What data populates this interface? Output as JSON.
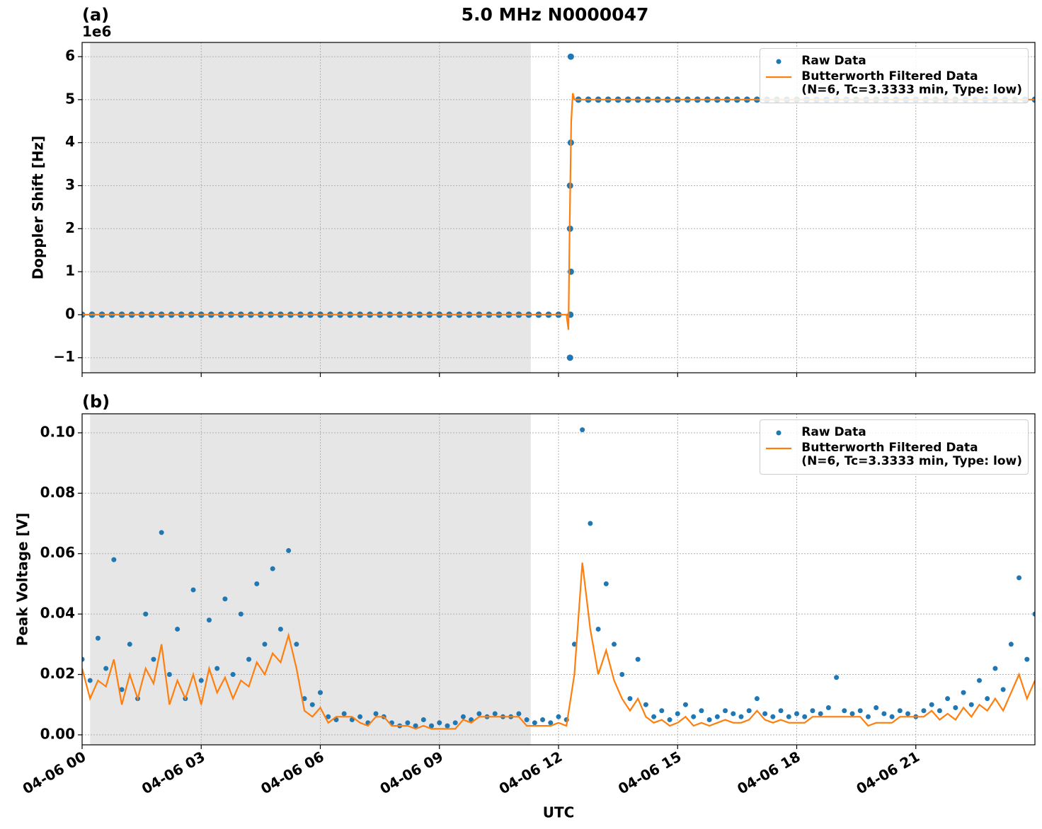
{
  "figure_title": "5.0 MHz N0000047",
  "chart_data": [
    {
      "type": "line",
      "title": "(a)",
      "ylabel": "Doppler Shift [Hz]",
      "y_offset_text": "1e6",
      "xlim": [
        0,
        24
      ],
      "xticks": [
        0,
        3,
        6,
        9,
        12,
        15,
        18,
        21
      ],
      "xtick_labels": false,
      "ylim": [
        -1350000,
        6330000
      ],
      "yticks": [
        {
          "value": -1000000,
          "label": "−1"
        },
        0,
        {
          "value": 1000000,
          "label": "1"
        },
        {
          "value": 2000000,
          "label": "2"
        },
        {
          "value": 3000000,
          "label": "3"
        },
        {
          "value": 4000000,
          "label": "4"
        },
        {
          "value": 5000000,
          "label": "5"
        },
        {
          "value": 6000000,
          "label": "6"
        }
      ],
      "grid": true,
      "legend": "upper right",
      "shaded_span": [
        0.2,
        11.3
      ],
      "shade_color": "#e6e6e6",
      "series": [
        {
          "name": "Raw Data",
          "mode": "markers",
          "color": "#1f77b4",
          "x": [
            0,
            0.25,
            0.5,
            0.75,
            1,
            1.25,
            1.5,
            1.75,
            2,
            2.25,
            2.5,
            2.75,
            3,
            3.25,
            3.5,
            3.75,
            4,
            4.25,
            4.5,
            4.75,
            5,
            5.25,
            5.5,
            5.75,
            6,
            6.25,
            6.5,
            6.75,
            7,
            7.25,
            7.5,
            7.75,
            8,
            8.25,
            8.5,
            8.75,
            9,
            9.25,
            9.5,
            9.75,
            10,
            10.25,
            10.5,
            10.75,
            11,
            11.25,
            11.5,
            11.75,
            12,
            12.29,
            12.3,
            12.31,
            12.29,
            12.29,
            12.31,
            12.31,
            12.5,
            12.75,
            13,
            13.25,
            13.5,
            13.75,
            14,
            14.25,
            14.5,
            14.75,
            15,
            15.25,
            15.5,
            15.75,
            16,
            16.25,
            16.5,
            16.75,
            17,
            17.25,
            17.5,
            17.75,
            18,
            18.25,
            18.5,
            18.75,
            19,
            19.25,
            19.5,
            19.75,
            20,
            20.25,
            20.5,
            20.75,
            21,
            21.25,
            21.5,
            21.75,
            22,
            22.25,
            22.5,
            22.75,
            23,
            23.25,
            23.5,
            23.75,
            24
          ],
          "values": [
            0,
            0,
            0,
            0,
            0,
            0,
            0,
            0,
            0,
            0,
            0,
            0,
            0,
            0,
            0,
            0,
            0,
            0,
            0,
            0,
            0,
            0,
            0,
            0,
            0,
            0,
            0,
            0,
            0,
            0,
            0,
            0,
            0,
            0,
            0,
            0,
            0,
            0,
            0,
            0,
            0,
            0,
            0,
            0,
            0,
            0,
            0,
            0,
            0,
            -1000000,
            0,
            1000000,
            2000000,
            3000000,
            4000000,
            6000000,
            5000000,
            5000000,
            5000000,
            5000000,
            5000000,
            5000000,
            5000000,
            5000000,
            5000000,
            5000000,
            5000000,
            5000000,
            5000000,
            5000000,
            5000000,
            5000000,
            5000000,
            5000000,
            5000000,
            5000000,
            5000000,
            5000000,
            5000000,
            5000000,
            5000000,
            5000000,
            5000000,
            5000000,
            5000000,
            5000000,
            5000000,
            5000000,
            5000000,
            5000000,
            5000000,
            5000000,
            5000000,
            5000000,
            5000000,
            5000000,
            5000000,
            5000000,
            5000000,
            5000000,
            5000000,
            5000000,
            5000000
          ]
        },
        {
          "name": "Butterworth Filtered Data\n(N=6, Tc=3.3333 min, Type: low)",
          "mode": "lines",
          "color": "#ff7f0e",
          "x": [
            0,
            12.2,
            12.25,
            12.28,
            12.32,
            12.36,
            12.4,
            24
          ],
          "values": [
            0,
            0,
            -350000,
            2000000,
            4500000,
            5150000,
            5000000,
            5000000
          ]
        }
      ]
    },
    {
      "type": "line",
      "title": "(b)",
      "ylabel": "Peak Voltage [V]",
      "xlabel": "UTC",
      "xlim": [
        0,
        24
      ],
      "xticks": [
        {
          "value": 0,
          "label": "04-06 00"
        },
        {
          "value": 3,
          "label": "04-06 03"
        },
        {
          "value": 6,
          "label": "04-06 06"
        },
        {
          "value": 9,
          "label": "04-06 09"
        },
        {
          "value": 12,
          "label": "04-06 12"
        },
        {
          "value": 15,
          "label": "04-06 15"
        },
        {
          "value": 18,
          "label": "04-06 18"
        },
        {
          "value": 21,
          "label": "04-06 21"
        }
      ],
      "xtick_labels": true,
      "ylim": [
        -0.0033,
        0.1063
      ],
      "yticks": [
        {
          "value": 0,
          "label": "0.00"
        },
        0.02,
        0.04,
        0.06,
        0.08,
        {
          "value": 0.1,
          "label": "0.10"
        }
      ],
      "grid": true,
      "legend": "upper right",
      "shaded_span": [
        0.2,
        11.3
      ],
      "shade_color": "#e6e6e6",
      "x": [
        0,
        0.2,
        0.4,
        0.6,
        0.8,
        1,
        1.2,
        1.4,
        1.6,
        1.8,
        2,
        2.2,
        2.4,
        2.6,
        2.8,
        3,
        3.2,
        3.4,
        3.6,
        3.8,
        4,
        4.2,
        4.4,
        4.6,
        4.8,
        5,
        5.2,
        5.4,
        5.6,
        5.8,
        6,
        6.2,
        6.4,
        6.6,
        6.8,
        7,
        7.2,
        7.4,
        7.6,
        7.8,
        8,
        8.2,
        8.4,
        8.6,
        8.8,
        9,
        9.2,
        9.4,
        9.6,
        9.8,
        10,
        10.2,
        10.4,
        10.6,
        10.8,
        11,
        11.2,
        11.4,
        11.6,
        11.8,
        12,
        12.2,
        12.4,
        12.6,
        12.8,
        13,
        13.2,
        13.4,
        13.6,
        13.8,
        14,
        14.2,
        14.4,
        14.6,
        14.8,
        15,
        15.2,
        15.4,
        15.6,
        15.8,
        16,
        16.2,
        16.4,
        16.6,
        16.8,
        17,
        17.2,
        17.4,
        17.6,
        17.8,
        18,
        18.2,
        18.4,
        18.6,
        18.8,
        19,
        19.2,
        19.4,
        19.6,
        19.8,
        20,
        20.2,
        20.4,
        20.6,
        20.8,
        21,
        21.2,
        21.4,
        21.6,
        21.8,
        22,
        22.2,
        22.4,
        22.6,
        22.8,
        23,
        23.2,
        23.4,
        23.6,
        23.8,
        24
      ],
      "series": [
        {
          "name": "Raw Data",
          "mode": "markers",
          "color": "#1f77b4",
          "values": [
            0.025,
            0.018,
            0.032,
            0.022,
            0.058,
            0.015,
            0.03,
            0.012,
            0.04,
            0.025,
            0.067,
            0.02,
            0.035,
            0.012,
            0.048,
            0.018,
            0.038,
            0.022,
            0.045,
            0.02,
            0.04,
            0.025,
            0.05,
            0.03,
            0.055,
            0.035,
            0.061,
            0.03,
            0.012,
            0.01,
            0.014,
            0.006,
            0.005,
            0.007,
            0.005,
            0.006,
            0.004,
            0.007,
            0.006,
            0.004,
            0.003,
            0.004,
            0.003,
            0.005,
            0.003,
            0.004,
            0.003,
            0.004,
            0.006,
            0.005,
            0.007,
            0.006,
            0.007,
            0.006,
            0.006,
            0.007,
            0.005,
            0.004,
            0.005,
            0.004,
            0.006,
            0.005,
            0.03,
            0.101,
            0.07,
            0.035,
            0.05,
            0.03,
            0.02,
            0.012,
            0.025,
            0.01,
            0.006,
            0.008,
            0.005,
            0.007,
            0.01,
            0.006,
            0.008,
            0.005,
            0.006,
            0.008,
            0.007,
            0.006,
            0.008,
            0.012,
            0.007,
            0.006,
            0.008,
            0.006,
            0.007,
            0.006,
            0.008,
            0.007,
            0.009,
            0.019,
            0.008,
            0.007,
            0.008,
            0.006,
            0.009,
            0.007,
            0.006,
            0.008,
            0.007,
            0.006,
            0.008,
            0.01,
            0.008,
            0.012,
            0.009,
            0.014,
            0.01,
            0.018,
            0.012,
            0.022,
            0.015,
            0.03,
            0.052,
            0.025,
            0.04
          ]
        },
        {
          "name": "Butterworth Filtered Data\n(N=6, Tc=3.3333 min, Type: low)",
          "mode": "lines",
          "color": "#ff7f0e",
          "values": [
            0.022,
            0.012,
            0.018,
            0.016,
            0.025,
            0.01,
            0.02,
            0.012,
            0.022,
            0.017,
            0.03,
            0.01,
            0.018,
            0.012,
            0.02,
            0.01,
            0.022,
            0.014,
            0.019,
            0.012,
            0.018,
            0.016,
            0.024,
            0.02,
            0.027,
            0.024,
            0.033,
            0.022,
            0.008,
            0.006,
            0.009,
            0.004,
            0.006,
            0.006,
            0.006,
            0.004,
            0.003,
            0.006,
            0.006,
            0.003,
            0.003,
            0.003,
            0.002,
            0.003,
            0.002,
            0.002,
            0.002,
            0.002,
            0.005,
            0.004,
            0.006,
            0.006,
            0.006,
            0.006,
            0.006,
            0.006,
            0.003,
            0.003,
            0.003,
            0.003,
            0.004,
            0.003,
            0.02,
            0.057,
            0.035,
            0.02,
            0.028,
            0.018,
            0.012,
            0.008,
            0.012,
            0.006,
            0.004,
            0.005,
            0.003,
            0.004,
            0.006,
            0.003,
            0.004,
            0.003,
            0.004,
            0.005,
            0.004,
            0.004,
            0.005,
            0.008,
            0.005,
            0.004,
            0.005,
            0.004,
            0.004,
            0.004,
            0.006,
            0.006,
            0.006,
            0.006,
            0.006,
            0.006,
            0.006,
            0.003,
            0.004,
            0.004,
            0.004,
            0.006,
            0.006,
            0.006,
            0.006,
            0.008,
            0.005,
            0.007,
            0.005,
            0.009,
            0.006,
            0.01,
            0.008,
            0.012,
            0.008,
            0.014,
            0.02,
            0.012,
            0.018
          ]
        }
      ]
    }
  ]
}
